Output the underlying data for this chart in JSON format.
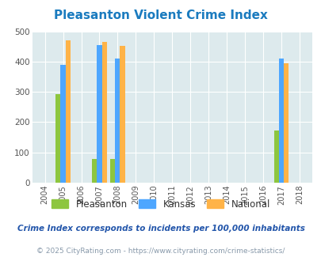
{
  "title": "Pleasanton Violent Crime Index",
  "years": [
    2004,
    2005,
    2006,
    2007,
    2008,
    2009,
    2010,
    2011,
    2012,
    2013,
    2014,
    2015,
    2016,
    2017,
    2018
  ],
  "pleasanton": {
    "2005": 293,
    "2007": 78,
    "2008": 78,
    "2017": 172
  },
  "kansas": {
    "2005": 390,
    "2007": 455,
    "2008": 410,
    "2017": 410
  },
  "national": {
    "2005": 470,
    "2007": 465,
    "2008": 453,
    "2017": 394
  },
  "pleasanton_color": "#8dc63f",
  "kansas_color": "#4da6ff",
  "national_color": "#ffb347",
  "bg_color": "#ddeaed",
  "ylim": [
    0,
    500
  ],
  "yticks": [
    0,
    100,
    200,
    300,
    400,
    500
  ],
  "bar_width": 0.27,
  "legend_labels": [
    "Pleasanton",
    "Kansas",
    "National"
  ],
  "footnote1": "Crime Index corresponds to incidents per 100,000 inhabitants",
  "footnote2": "© 2025 CityRating.com - https://www.cityrating.com/crime-statistics/",
  "title_color": "#1a7bbf",
  "footnote1_color": "#2255aa",
  "footnote2_color": "#8899aa"
}
